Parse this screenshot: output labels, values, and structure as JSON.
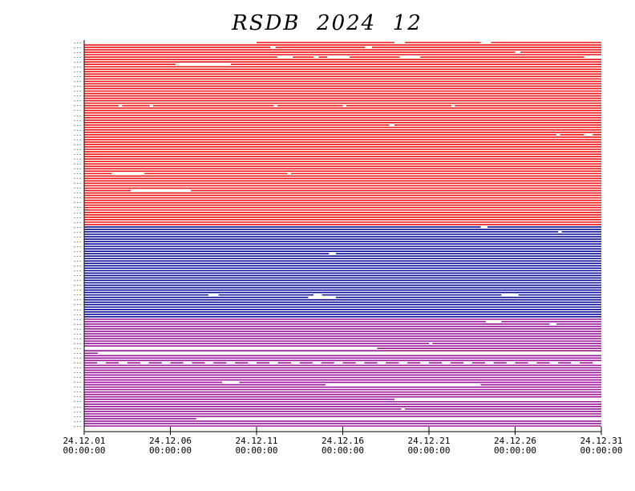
{
  "chart_data": {
    "type": "timeline",
    "title": "RSDB  2024  12",
    "x_ticks": [
      {
        "date": "2024-12-01",
        "line1": "24.12.01",
        "line2": "00:00:00"
      },
      {
        "date": "2024-12-06",
        "line1": "24.12.06",
        "line2": "00:00:00"
      },
      {
        "date": "2024-12-11",
        "line1": "24.12.11",
        "line2": "00:00:00"
      },
      {
        "date": "2024-12-16",
        "line1": "24.12.16",
        "line2": "00:00:00"
      },
      {
        "date": "2024-12-21",
        "line1": "24.12.21",
        "line2": "00:00:00"
      },
      {
        "date": "2024-12-26",
        "line1": "24.12.26",
        "line2": "00:00:00"
      },
      {
        "date": "2024-12-31",
        "line1": "24.12.31",
        "line2": "00:00:00"
      }
    ],
    "xlim": [
      "2024-12-01",
      "2024-12-31"
    ],
    "groups": [
      {
        "color": "#ee1111",
        "rows": 76
      },
      {
        "color": "#0a0a9a",
        "rows": 38
      },
      {
        "color": "#9b139b",
        "rows": 45
      }
    ],
    "gaps": [
      {
        "row": 0,
        "from": "2024-12-01",
        "to": "2024-12-11"
      },
      {
        "row": 0,
        "from": "2024-12-19",
        "to": "2024-12-19.6"
      },
      {
        "row": 0,
        "from": "2024-12-24",
        "to": "2024-12-24.6"
      },
      {
        "row": 2,
        "from": "2024-12-11.8",
        "to": "2024-12-12.1"
      },
      {
        "row": 2,
        "from": "2024-12-17.3",
        "to": "2024-12-17.7"
      },
      {
        "row": 4,
        "from": "2024-12-26",
        "to": "2024-12-26.3"
      },
      {
        "row": 6,
        "from": "2024-12-12.2",
        "to": "2024-12-13.1"
      },
      {
        "row": 6,
        "from": "2024-12-14.3",
        "to": "2024-12-14.6"
      },
      {
        "row": 6,
        "from": "2024-12-15.1",
        "to": "2024-12-16.4"
      },
      {
        "row": 6,
        "from": "2024-12-19.3",
        "to": "2024-12-20.5"
      },
      {
        "row": 6,
        "from": "2024-12-30",
        "to": "2024-12-31"
      },
      {
        "row": 9,
        "from": "2024-12-06.3",
        "to": "2024-12-09.5"
      },
      {
        "row": 26,
        "from": "2024-12-03",
        "to": "2024-12-03.2"
      },
      {
        "row": 26,
        "from": "2024-12-04.8",
        "to": "2024-12-05"
      },
      {
        "row": 26,
        "from": "2024-12-12",
        "to": "2024-12-12.2"
      },
      {
        "row": 26,
        "from": "2024-12-16",
        "to": "2024-12-16.2"
      },
      {
        "row": 26,
        "from": "2024-12-22.3",
        "to": "2024-12-22.5"
      },
      {
        "row": 34,
        "from": "2024-12-18.7",
        "to": "2024-12-19"
      },
      {
        "row": 38,
        "from": "2024-12-28.4",
        "to": "2024-12-28.6"
      },
      {
        "row": 38,
        "from": "2024-12-30",
        "to": "2024-12-30.5"
      },
      {
        "row": 54,
        "from": "2024-12-02.6",
        "to": "2024-12-04.5"
      },
      {
        "row": 54,
        "from": "2024-12-12.8",
        "to": "2024-12-13"
      },
      {
        "row": 61,
        "from": "2024-12-03.7",
        "to": "2024-12-07.2"
      },
      {
        "row": 76,
        "from": "2024-12-24",
        "to": "2024-12-24.4"
      },
      {
        "row": 78,
        "from": "2024-12-28.5",
        "to": "2024-12-28.7"
      },
      {
        "row": 87,
        "from": "2024-12-15.2",
        "to": "2024-12-15.6"
      },
      {
        "row": 104,
        "from": "2024-12-08.2",
        "to": "2024-12-08.8"
      },
      {
        "row": 104,
        "from": "2024-12-14.3",
        "to": "2024-12-14.8"
      },
      {
        "row": 104,
        "from": "2024-12-25.2",
        "to": "2024-12-26.2"
      },
      {
        "row": 105,
        "from": "2024-12-14",
        "to": "2024-12-15.6"
      },
      {
        "row": 115,
        "from": "2024-12-24.3",
        "to": "2024-12-25.2"
      },
      {
        "row": 116,
        "from": "2024-12-28",
        "to": "2024-12-28.4"
      },
      {
        "row": 124,
        "from": "2024-12-21",
        "to": "2024-12-21.2"
      },
      {
        "row": 126,
        "from": "2024-12-01",
        "to": "2024-12-18"
      },
      {
        "row": 128,
        "from": "2024-12-01.8",
        "to": "2024-12-31"
      },
      {
        "row": 140,
        "from": "2024-12-09",
        "to": "2024-12-10"
      },
      {
        "row": 141,
        "from": "2024-12-15",
        "to": "2024-12-24"
      },
      {
        "row": 147,
        "from": "2024-12-19",
        "to": "2024-12-31"
      },
      {
        "row": 151,
        "from": "2024-12-19.4",
        "to": "2024-12-19.6"
      },
      {
        "row": 155,
        "from": "2024-12-07.5",
        "to": "2024-12-31"
      }
    ],
    "dashed_rows": [
      {
        "row": 132,
        "period_days": 1.25,
        "gap_days": 0.5
      }
    ],
    "row_label_placeholder": "---"
  }
}
